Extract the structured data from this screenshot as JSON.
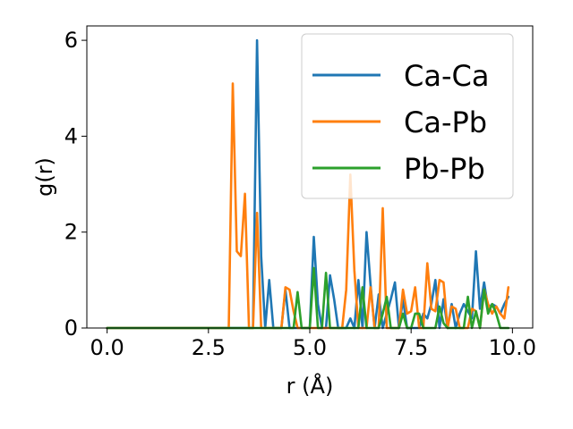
{
  "chart_data": {
    "type": "line",
    "title": "",
    "xlabel": "r (Å)",
    "ylabel": "g(r)",
    "xlim": [
      -0.5,
      10.5
    ],
    "ylim": [
      0,
      6.3
    ],
    "xticks": [
      0.0,
      2.5,
      5.0,
      7.5,
      10.0
    ],
    "xtick_labels": [
      "0.0",
      "2.5",
      "5.0",
      "7.5",
      "10.0"
    ],
    "yticks": [
      0,
      2,
      4,
      6
    ],
    "ytick_labels": [
      "0",
      "2",
      "4",
      "6"
    ],
    "grid": false,
    "legend_position": "top-right",
    "series": [
      {
        "name": "Ca-Ca",
        "color": "#1f77b4",
        "x": [
          0.0,
          3.5,
          3.6,
          3.7,
          3.8,
          3.9,
          4.0,
          4.1,
          4.2,
          4.3,
          4.4,
          4.5,
          4.6,
          4.7,
          4.8,
          4.9,
          5.0,
          5.1,
          5.2,
          5.3,
          5.4,
          5.5,
          5.6,
          5.7,
          5.8,
          5.9,
          6.0,
          6.1,
          6.2,
          6.3,
          6.4,
          6.5,
          6.6,
          6.7,
          6.8,
          6.9,
          7.0,
          7.1,
          7.2,
          7.3,
          7.4,
          7.5,
          7.6,
          7.7,
          7.8,
          7.9,
          8.0,
          8.1,
          8.2,
          8.3,
          8.4,
          8.5,
          8.6,
          8.7,
          8.8,
          8.9,
          9.0,
          9.1,
          9.2,
          9.3,
          9.4,
          9.5,
          9.6,
          9.7,
          9.8,
          9.9
        ],
        "values": [
          0,
          0,
          0,
          6.0,
          1.5,
          0,
          1.0,
          0,
          0,
          0,
          0.8,
          0,
          0,
          0,
          0,
          0,
          0,
          1.9,
          0.5,
          0,
          0,
          1.1,
          0.6,
          0,
          0,
          0,
          0.2,
          0,
          1.0,
          0,
          2.0,
          0.9,
          0,
          0.7,
          0,
          0.3,
          0.6,
          0.95,
          0,
          0.6,
          0,
          0,
          0,
          0,
          0.3,
          0.2,
          0.5,
          1.0,
          0,
          0.6,
          0,
          0.5,
          0,
          0.3,
          0.5,
          0.35,
          0.2,
          1.6,
          0.4,
          0.95,
          0.4,
          0.5,
          0.45,
          0.3,
          0.5,
          0.65
        ]
      },
      {
        "name": "Ca-Pb",
        "color": "#ff7f0e",
        "x": [
          0.0,
          3.0,
          3.1,
          3.2,
          3.3,
          3.4,
          3.5,
          3.6,
          3.7,
          3.8,
          3.9,
          4.0,
          4.1,
          4.2,
          4.3,
          4.4,
          4.5,
          4.6,
          4.7,
          4.8,
          4.9,
          5.0,
          5.1,
          5.2,
          5.3,
          5.4,
          5.5,
          5.6,
          5.7,
          5.8,
          5.9,
          6.0,
          6.1,
          6.2,
          6.3,
          6.4,
          6.5,
          6.6,
          6.7,
          6.8,
          6.9,
          7.0,
          7.1,
          7.2,
          7.3,
          7.4,
          7.5,
          7.6,
          7.7,
          7.8,
          7.9,
          8.0,
          8.1,
          8.2,
          8.3,
          8.4,
          8.5,
          8.6,
          8.7,
          8.8,
          8.9,
          9.0,
          9.1,
          9.2,
          9.3,
          9.4,
          9.5,
          9.6,
          9.7,
          9.8,
          9.9
        ],
        "values": [
          0,
          0,
          5.1,
          1.6,
          1.5,
          2.8,
          0,
          0,
          2.4,
          0,
          0,
          0,
          0,
          0,
          0,
          0.85,
          0.8,
          0.35,
          0,
          0,
          0,
          0,
          0,
          0,
          0,
          0,
          0,
          0,
          0,
          0,
          0.8,
          3.2,
          1.2,
          0,
          0,
          0,
          0.85,
          0,
          0,
          2.5,
          0,
          0,
          0,
          0,
          0.8,
          0.3,
          0.35,
          0.85,
          0,
          0,
          1.35,
          0.4,
          0.35,
          1.0,
          0.95,
          0,
          0.45,
          0.4,
          0,
          0,
          0,
          0.4,
          0.35,
          0,
          0.8,
          0.5,
          0.3,
          0.45,
          0.3,
          0.2,
          0.85
        ]
      },
      {
        "name": "Pb-Pb",
        "color": "#2ca02c",
        "x": [
          0.0,
          4.3,
          4.4,
          4.5,
          4.6,
          4.7,
          4.8,
          4.9,
          5.0,
          5.1,
          5.2,
          5.3,
          5.4,
          5.5,
          5.6,
          5.7,
          5.8,
          5.9,
          6.0,
          6.1,
          6.2,
          6.3,
          6.4,
          6.5,
          6.6,
          6.7,
          6.8,
          6.9,
          7.0,
          7.1,
          7.2,
          7.3,
          7.4,
          7.5,
          7.6,
          7.7,
          7.8,
          7.9,
          8.0,
          8.1,
          8.2,
          8.3,
          8.4,
          8.5,
          8.6,
          8.7,
          8.8,
          8.9,
          9.0,
          9.1,
          9.2,
          9.3,
          9.4,
          9.5,
          9.6,
          9.7,
          9.8,
          9.9
        ],
        "values": [
          0,
          0,
          0,
          0,
          0,
          0.75,
          0,
          0,
          0,
          1.25,
          0,
          0,
          1.15,
          0,
          0,
          0,
          0,
          0,
          0,
          0,
          0,
          0.85,
          0,
          0,
          0,
          0,
          0.3,
          0.65,
          0,
          0,
          0,
          0.3,
          0,
          0,
          0.3,
          0.3,
          0,
          0,
          0,
          0,
          0.45,
          0.1,
          0,
          0,
          0,
          0,
          0,
          0.65,
          0,
          0.35,
          0,
          0.8,
          0.3,
          0.5,
          0.3,
          0,
          0,
          0
        ]
      }
    ]
  }
}
